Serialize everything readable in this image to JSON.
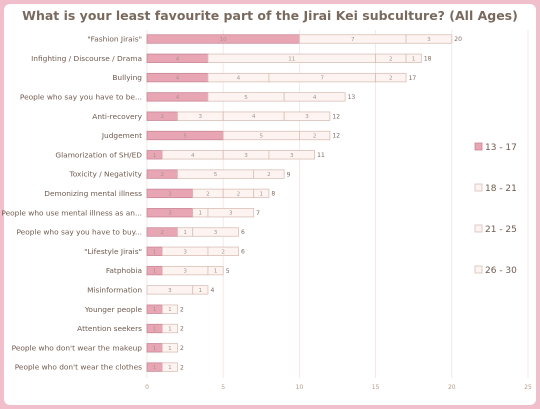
{
  "chart_data": {
    "type": "bar",
    "orientation": "horizontal",
    "stacked": true,
    "title": "What is your least favourite part of the Jirai Kei subculture? (All Ages)",
    "xlabel": "",
    "ylabel": "",
    "xlim": [
      0,
      25
    ],
    "xticks": [
      0,
      5,
      10,
      15,
      20,
      25
    ],
    "grid": true,
    "legend_position": "right",
    "categories": [
      "\"Fashion Jirais\"",
      "Infighting / Discourse / Drama",
      "Bullying",
      "People who say you have to be...",
      "Anti-recovery",
      "Judgement",
      "Glamorization of SH/ED",
      "Toxicity / Negativity",
      "Demonizing mental illness",
      "People who use mental illness as an...",
      "People who say you have to buy...",
      "\"Lifestyle Jirais\"",
      "Fatphobia",
      "Misinformation",
      "Younger people",
      "Attention seekers",
      "People who don't wear the makeup",
      "People who don't wear the clothes"
    ],
    "series": [
      {
        "name": "13 - 17",
        "color": "#e8a6b4",
        "border": "#c98796",
        "values": [
          10,
          4,
          4,
          4,
          2,
          5,
          1,
          2,
          3,
          3,
          2,
          1,
          1,
          0,
          1,
          1,
          1,
          1
        ]
      },
      {
        "name": "18 - 21",
        "color": "#fdf4f2",
        "border": "#d9bfb6",
        "values": [
          7,
          11,
          4,
          5,
          3,
          5,
          4,
          5,
          2,
          1,
          1,
          3,
          3,
          3,
          0,
          0,
          0,
          0
        ]
      },
      {
        "name": "21 - 25",
        "color": "#fdf4f2",
        "border": "#d9bfb6",
        "values": [
          0,
          2,
          7,
          0,
          4,
          0,
          3,
          2,
          2,
          3,
          3,
          2,
          1,
          1,
          0,
          0,
          0,
          0
        ]
      },
      {
        "name": "26 - 30",
        "color": "#fdf4f2",
        "border": "#d9bfb6",
        "values": [
          3,
          1,
          2,
          4,
          3,
          2,
          3,
          0,
          1,
          0,
          0,
          0,
          0,
          0,
          1,
          1,
          1,
          1
        ]
      }
    ],
    "totals": [
      20,
      18,
      17,
      13,
      12,
      12,
      11,
      9,
      8,
      7,
      6,
      6,
      5,
      4,
      2,
      2,
      2,
      2
    ]
  }
}
